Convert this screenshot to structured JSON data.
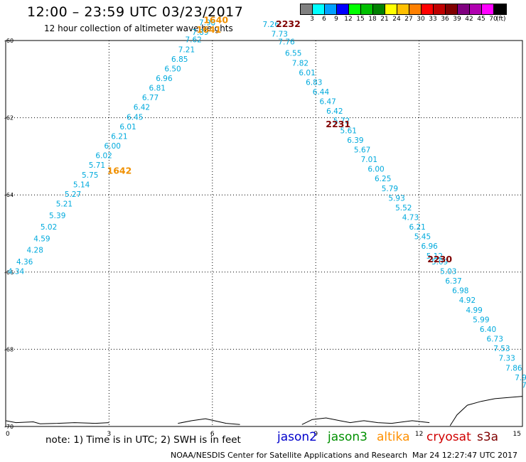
{
  "header": {
    "title": "12:00 – 23:59 UTC 03/23/2017",
    "subtitle": "12 hour collection of altimeter wave heights"
  },
  "colorbar": {
    "unit": "(ft)",
    "colors": [
      "#808080",
      "#00ffff",
      "#00a0ff",
      "#0000ff",
      "#00ff00",
      "#00c000",
      "#008000",
      "#ffff00",
      "#ffc000",
      "#ff8000",
      "#ff0000",
      "#c00000",
      "#800000",
      "#800080",
      "#b000b0",
      "#ff00ff",
      "#000000"
    ],
    "labels": [
      "3",
      "6",
      "9",
      "12",
      "15",
      "18",
      "21",
      "24",
      "27",
      "30",
      "33",
      "36",
      "39",
      "42",
      "45",
      "70"
    ]
  },
  "chart_data": {
    "type": "scatter",
    "title": "12:00 – 23:59 UTC 03/23/2017",
    "subtitle": "12 hour collection of altimeter wave heights",
    "xlim": [
      0,
      15
    ],
    "ylim": [
      -70,
      -60
    ],
    "x_ticks": [
      "0",
      "3",
      "6",
      "9",
      "12",
      "15"
    ],
    "y_ticks": [
      "-60",
      "-62",
      "-64",
      "-66",
      "-68",
      "-70"
    ],
    "grid": true,
    "series": [
      {
        "name": "jason2",
        "color": "#00aadd",
        "points": [
          {
            "x": 0.3,
            "y": -66.05,
            "v": "4.34"
          },
          {
            "x": 0.55,
            "y": -65.8,
            "v": "4.36"
          },
          {
            "x": 0.85,
            "y": -65.5,
            "v": "4.28"
          },
          {
            "x": 1.05,
            "y": -65.2,
            "v": "4.59"
          },
          {
            "x": 1.25,
            "y": -64.9,
            "v": "5.02"
          },
          {
            "x": 1.5,
            "y": -64.6,
            "v": "5.39"
          },
          {
            "x": 1.7,
            "y": -64.3,
            "v": "5.21"
          },
          {
            "x": 1.95,
            "y": -64.05,
            "v": "5.27"
          },
          {
            "x": 2.2,
            "y": -63.8,
            "v": "5.14"
          },
          {
            "x": 2.45,
            "y": -63.55,
            "v": "5.75"
          },
          {
            "x": 2.65,
            "y": -63.3,
            "v": "5.71"
          },
          {
            "x": 2.85,
            "y": -63.05,
            "v": "6.02"
          },
          {
            "x": 3.1,
            "y": -62.8,
            "v": "6.00"
          },
          {
            "x": 3.3,
            "y": -62.55,
            "v": "6.21"
          },
          {
            "x": 3.55,
            "y": -62.3,
            "v": "6.01"
          },
          {
            "x": 3.75,
            "y": -62.05,
            "v": "6.45"
          },
          {
            "x": 3.95,
            "y": -61.8,
            "v": "6.42"
          },
          {
            "x": 4.2,
            "y": -61.55,
            "v": "6.77"
          },
          {
            "x": 4.4,
            "y": -61.3,
            "v": "6.81"
          },
          {
            "x": 4.6,
            "y": -61.05,
            "v": "6.96"
          },
          {
            "x": 4.85,
            "y": -60.8,
            "v": "6.50"
          },
          {
            "x": 5.05,
            "y": -60.55,
            "v": "6.85"
          },
          {
            "x": 5.25,
            "y": -60.3,
            "v": "7.21"
          },
          {
            "x": 5.45,
            "y": -60.05,
            "v": "7.62"
          },
          {
            "x": 5.65,
            "y": -59.85,
            "v": "7.89"
          },
          {
            "x": 5.85,
            "y": -59.6,
            "v": "7.98"
          },
          {
            "x": 7.7,
            "y": -59.65,
            "v": "7.26"
          },
          {
            "x": 7.95,
            "y": -59.9,
            "v": "7.73"
          },
          {
            "x": 8.15,
            "y": -60.1,
            "v": "7.76"
          },
          {
            "x": 8.35,
            "y": -60.4,
            "v": "6.55"
          },
          {
            "x": 8.55,
            "y": -60.65,
            "v": "7.82"
          },
          {
            "x": 8.75,
            "y": -60.9,
            "v": "6.01"
          },
          {
            "x": 8.95,
            "y": -61.15,
            "v": "6.83"
          },
          {
            "x": 9.15,
            "y": -61.4,
            "v": "6.44"
          },
          {
            "x": 9.35,
            "y": -61.65,
            "v": "6.47"
          },
          {
            "x": 9.55,
            "y": -61.9,
            "v": "6.42"
          },
          {
            "x": 9.75,
            "y": -62.15,
            "v": "5.72"
          },
          {
            "x": 9.95,
            "y": -62.4,
            "v": "5.61"
          },
          {
            "x": 10.15,
            "y": -62.65,
            "v": "6.39"
          },
          {
            "x": 10.35,
            "y": -62.9,
            "v": "5.67"
          },
          {
            "x": 10.55,
            "y": -63.15,
            "v": "7.01"
          },
          {
            "x": 10.75,
            "y": -63.4,
            "v": "6.00"
          },
          {
            "x": 10.95,
            "y": -63.65,
            "v": "6.25"
          },
          {
            "x": 11.15,
            "y": -63.9,
            "v": "5.79"
          },
          {
            "x": 11.35,
            "y": -64.15,
            "v": "5.93"
          },
          {
            "x": 11.55,
            "y": -64.4,
            "v": "5.52"
          },
          {
            "x": 11.75,
            "y": -64.65,
            "v": "4.73"
          },
          {
            "x": 11.95,
            "y": -64.9,
            "v": "6.21"
          },
          {
            "x": 12.1,
            "y": -65.15,
            "v": "5.45"
          },
          {
            "x": 12.3,
            "y": -65.4,
            "v": "6.96"
          },
          {
            "x": 12.45,
            "y": -65.65,
            "v": "5.12"
          },
          {
            "x": 12.6,
            "y": -65.8,
            "v": "5.09"
          },
          {
            "x": 12.85,
            "y": -66.05,
            "v": "5.03"
          },
          {
            "x": 13.0,
            "y": -66.3,
            "v": "6.37"
          },
          {
            "x": 13.2,
            "y": -66.55,
            "v": "6.98"
          },
          {
            "x": 13.4,
            "y": -66.8,
            "v": "4.92"
          },
          {
            "x": 13.6,
            "y": -67.05,
            "v": "4.99"
          },
          {
            "x": 13.8,
            "y": -67.3,
            "v": "5.99"
          },
          {
            "x": 14.0,
            "y": -67.55,
            "v": "6.40"
          },
          {
            "x": 14.2,
            "y": -67.8,
            "v": "6.73"
          },
          {
            "x": 14.4,
            "y": -68.05,
            "v": "7.53"
          },
          {
            "x": 14.55,
            "y": -68.3,
            "v": "7.33"
          },
          {
            "x": 14.75,
            "y": -68.55,
            "v": "7.86"
          },
          {
            "x": 14.95,
            "y": -68.8,
            "v": "7.9"
          },
          {
            "x": 15.05,
            "y": -69.0,
            "v": "7"
          }
        ]
      }
    ],
    "time_labels": [
      {
        "x": 6.1,
        "y": -59.55,
        "text": "1640",
        "color": "#f09000"
      },
      {
        "x": 5.9,
        "y": -59.8,
        "text": "1641",
        "color": "#f09000"
      },
      {
        "x": 3.3,
        "y": -63.45,
        "text": "1642",
        "color": "#f09000"
      },
      {
        "x": 8.2,
        "y": -59.65,
        "text": "2232",
        "color": "#800000"
      },
      {
        "x": 9.65,
        "y": -62.25,
        "text": "2231",
        "color": "#800000"
      },
      {
        "x": 12.6,
        "y": -65.75,
        "text": "2230",
        "color": "#800000"
      }
    ]
  },
  "notes": {
    "note_text": "note: 1) Time is in UTC; 2) SWH is in feet"
  },
  "legend": [
    {
      "label": "jason2",
      "color": "#0000cc"
    },
    {
      "label": "jason3",
      "color": "#009000"
    },
    {
      "label": "altika",
      "color": "#ff9000"
    },
    {
      "label": "cryosat",
      "color": "#d00000"
    },
    {
      "label": "s3a",
      "color": "#800000"
    }
  ],
  "footer": {
    "credit": "NOAA/NESDIS Center for Satellite Applications and Research",
    "timestamp": "Mar 24 12:27:47 UTC 2017"
  }
}
